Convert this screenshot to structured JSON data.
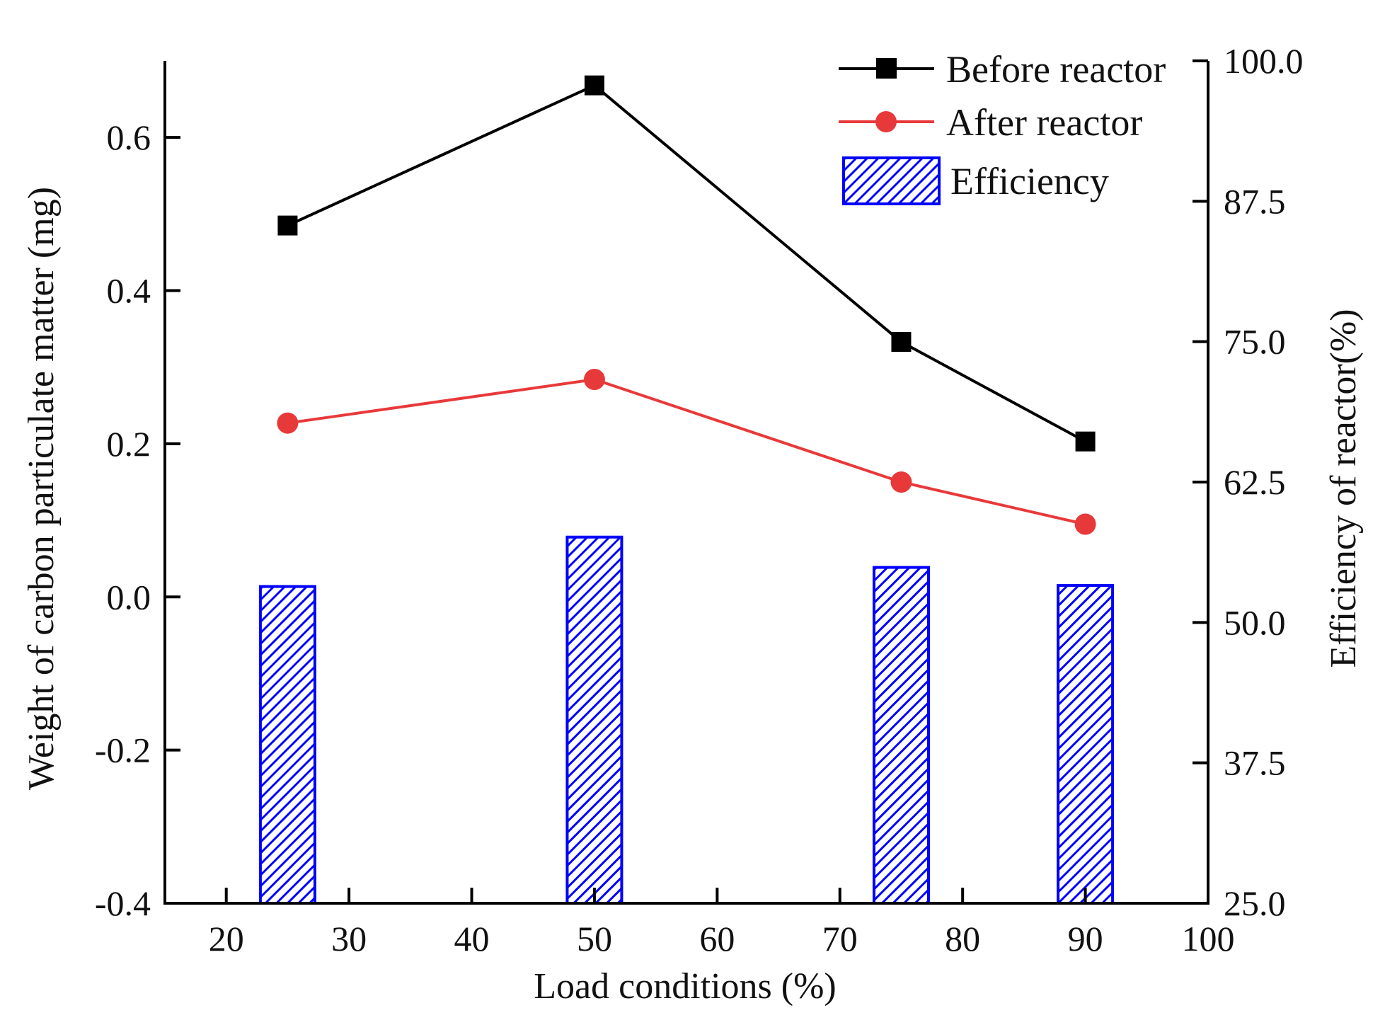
{
  "chart_data": {
    "type": "bar+line",
    "xlabel": "Load conditions (%)",
    "ylabel_left": "Weight of carbon particulate matter (mg)",
    "ylabel_right": "Efficiency of reactor(%)",
    "xlim": [
      15,
      100
    ],
    "ylim_left": [
      -0.4,
      0.7
    ],
    "ylim_right": [
      25,
      100
    ],
    "x_ticks": [
      20,
      30,
      40,
      50,
      60,
      70,
      80,
      90,
      100
    ],
    "x_tick_labels": [
      "20",
      "30",
      "40",
      "50",
      "60",
      "70",
      "80",
      "90",
      "100"
    ],
    "y_left_ticks": [
      -0.4,
      -0.2,
      0.0,
      0.2,
      0.4,
      0.6
    ],
    "y_left_tick_labels": [
      "-0.4",
      "-0.2",
      "0.0",
      "0.2",
      "0.4",
      "0.6"
    ],
    "y_right_ticks": [
      25,
      37.5,
      50,
      62.5,
      75,
      87.5,
      100
    ],
    "y_right_tick_labels": [
      "25.0",
      "37.5",
      "50.0",
      "62.5",
      "75.0",
      "87.5",
      "100.0"
    ],
    "x": [
      25,
      50,
      75,
      90
    ],
    "series": [
      {
        "name": "Before reactor",
        "axis": "left",
        "kind": "line",
        "marker": "square",
        "color": "#000000",
        "values": [
          0.485,
          0.668,
          0.333,
          0.203
        ]
      },
      {
        "name": "After reactor",
        "axis": "left",
        "kind": "line",
        "marker": "circle",
        "color": "#e8393a",
        "values": [
          0.227,
          0.284,
          0.15,
          0.095
        ]
      },
      {
        "name": "Efficiency",
        "axis": "right",
        "kind": "bar",
        "pattern": "hatched",
        "color": "#0000ff",
        "values": [
          53.2,
          57.6,
          54.9,
          53.3
        ]
      }
    ],
    "legend": {
      "position": "top-right"
    }
  }
}
